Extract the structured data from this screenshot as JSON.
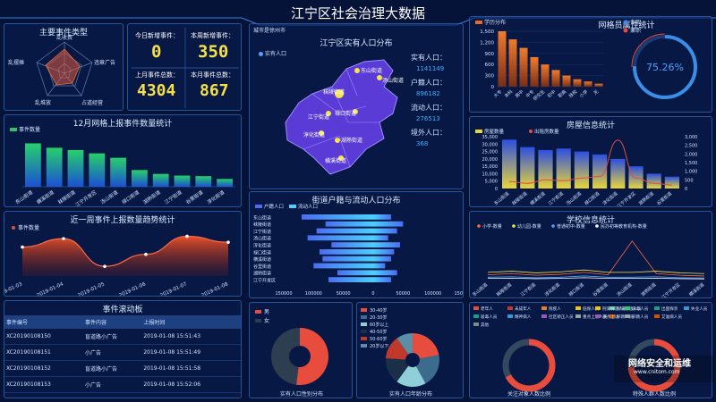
{
  "header": {
    "title": "江宁区社会治理大数据"
  },
  "radar": {
    "title": "主要事件类型",
    "labels": [
      "乱收费",
      "违章广告",
      "占道经营",
      "乱堆放",
      "乱摆摊"
    ]
  },
  "stats": {
    "today_label": "今日新增事件：",
    "today_value": "0",
    "week_label": "本周新增事件：",
    "week_value": "350",
    "lastmonth_label": "上月事件总数：",
    "lastmonth_value": "4304",
    "thismonth_label": "本月事件总数：",
    "thismonth_value": "867"
  },
  "map": {
    "title": "江宁区实有人口分布",
    "subtitle": "城市是徐州市",
    "legend": "实有人口",
    "places": [
      "秣陵街道",
      "东山街道",
      "江宁街道",
      "禄口街道",
      "淳化街道",
      "汤山街道",
      "横溪街道",
      "湖熟街道"
    ],
    "info": [
      {
        "label": "实有人口：",
        "value": "1141149"
      },
      {
        "label": "户籍人口：",
        "value": "896182"
      },
      {
        "label": "流动人口：",
        "value": "276513"
      },
      {
        "label": "境外人口：",
        "value": "368"
      }
    ]
  },
  "chart_data": [
    {
      "type": "bar",
      "title": "12月网格上报事件数量统计",
      "legend": "事件数量",
      "categories": [
        "东山街道",
        "横溪街道",
        "秣陵街道",
        "江宁开发区",
        "汤山街道",
        "禄口街道",
        "湖熟街道",
        "江宁街道",
        "谷里街道",
        "淳化街道"
      ],
      "values": [
        780,
        700,
        660,
        600,
        520,
        300,
        230,
        200,
        190,
        140
      ],
      "ylim": [
        0,
        900
      ]
    },
    {
      "type": "area",
      "title": "近一周事件上报数量趋势统计",
      "legend": "事件数量",
      "categories": [
        "2019-01-03",
        "2019-01-04",
        "2019-01-05",
        "2019-01-06",
        "2019-01-07",
        "2019-01-08"
      ],
      "values": [
        120,
        155,
        40,
        90,
        165,
        140
      ],
      "ylim": [
        0,
        200
      ]
    },
    {
      "type": "bar",
      "title": "网格员属性统计",
      "legend": "学历分布",
      "categories": [
        "大专",
        "本科",
        "高中",
        "中专",
        "研究生",
        "初中",
        "职高",
        "技校",
        "小学",
        "无"
      ],
      "values": [
        1500,
        1280,
        1050,
        800,
        600,
        450,
        300,
        200,
        140,
        80
      ],
      "ylim": [
        0,
        1500
      ],
      "yticks": [
        "0",
        "300",
        "600",
        "900",
        "1,200",
        "1,500"
      ]
    },
    {
      "type": "pie",
      "title": "网格员属性统计",
      "labels": [
        "专职",
        "兼职"
      ],
      "values": [
        75.26,
        24.74
      ],
      "center_label": "75.26%"
    },
    {
      "type": "bar",
      "title": "房屋信息统计",
      "series": [
        {
          "name": "房屋数量",
          "values": [
            33000,
            28000,
            26000,
            27000,
            25000,
            23000,
            20000,
            15000,
            10000,
            8000
          ]
        },
        {
          "name": "出租房数量",
          "values": [
            400,
            300,
            500,
            450,
            600,
            700,
            2800,
            600,
            300,
            200
          ]
        }
      ],
      "categories": [
        "东山街道",
        "秣陵街道",
        "横溪街道",
        "江宁街道",
        "汤山街道",
        "禄口街道",
        "淳化街道",
        "江宁开发区",
        "湖熟街道",
        "谷里街道"
      ],
      "ylim": [
        0,
        35000
      ],
      "y2lim": [
        0,
        3000
      ],
      "yticks": [
        "0",
        "5,000",
        "10,000",
        "15,000",
        "20,000",
        "25,000",
        "30,000",
        "35,000"
      ],
      "y2ticks": [
        "0",
        "500",
        "1,000",
        "1,500",
        "2,000",
        "2,500",
        "3,000"
      ]
    },
    {
      "type": "line",
      "title": "学校信息统计",
      "series": [
        {
          "name": "小学-数量",
          "values": [
            20,
            25,
            18,
            22,
            30,
            20,
            160,
            25,
            18,
            15
          ]
        },
        {
          "name": "幼儿园-数量",
          "values": [
            30,
            35,
            28,
            32,
            40,
            30,
            30,
            35,
            28,
            25
          ]
        },
        {
          "name": "普通初中-数量",
          "values": [
            10,
            12,
            8,
            10,
            15,
            10,
            10,
            12,
            8,
            7
          ]
        },
        {
          "name": "民办初等教育机构-数量",
          "values": [
            5,
            6,
            4,
            5,
            8,
            5,
            5,
            6,
            4,
            3
          ]
        }
      ],
      "categories": [
        "东山街道",
        "秣陵街道",
        "江宁街道",
        "淳化街道",
        "禄口街道",
        "谷里街道",
        "汤山街道",
        "湖熟街道",
        "江宁开发区",
        "横溪街道"
      ],
      "ylim": [
        0,
        200
      ]
    },
    {
      "type": "bar",
      "title": "街道户籍与流动人口分布",
      "series": [
        {
          "name": "户籍人口",
          "values": [
            120000,
            80000,
            95000,
            110000,
            70000,
            90000,
            85000,
            100000,
            60000,
            75000
          ]
        },
        {
          "name": "流动人口",
          "values": [
            30000,
            50000,
            40000,
            25000,
            45000,
            35000,
            30000,
            20000,
            40000,
            30000
          ]
        }
      ],
      "categories": [
        "东山街道",
        "秣陵街道",
        "江宁街道",
        "汤山街道",
        "淳化街道",
        "禄口街道",
        "横溪街道",
        "谷里街道",
        "湖熟街道",
        "江宁开发区"
      ],
      "xticks": [
        "150000",
        "100000",
        "50000",
        "0",
        "50000",
        "100000",
        "150000"
      ]
    },
    {
      "type": "pie",
      "title": "实有人口性别分布",
      "labels": [
        "男",
        "女"
      ],
      "values": [
        52,
        48
      ]
    },
    {
      "type": "pie",
      "title": "实有人口年龄分布",
      "labels": [
        "30-40岁",
        "20-30岁",
        "60岁以上",
        "40-50岁",
        "50-60岁",
        "20岁以下"
      ],
      "values": [
        22,
        20,
        18,
        16,
        14,
        10
      ]
    },
    {
      "type": "pie",
      "title": "关注对象人数比例",
      "labels": [
        "老年人",
        "未成年人",
        "残疾人",
        "低保人员",
        "刑满释放人员",
        "吸毒人员",
        "精神病人",
        "社区矫正人员",
        "重点上访人员",
        "邪教人员",
        "其他"
      ]
    },
    {
      "type": "pie",
      "title": "特殊人群人数比例",
      "labels": [
        "刑满释放人员",
        "吸毒人员",
        "出国探亲",
        "失业人员",
        "重点上访",
        "邪教人员",
        "艾滋病人员"
      ]
    }
  ],
  "events": {
    "title": "事件滚动板",
    "columns": [
      "事件编号",
      "事件内容",
      "上报时间"
    ],
    "rows": [
      [
        "XC20190108150",
        "盲道路小广告",
        "2019-01-08 15:51:43"
      ],
      [
        "XC20190108151",
        "小广告",
        "2019-01-08 15:51:49"
      ],
      [
        "XC20190108152",
        "盲道路小广告",
        "2019-01-08 15:51:58"
      ],
      [
        "XC20190108153",
        "小广告",
        "2019-01-08 15:52:06"
      ]
    ]
  },
  "watermark": {
    "title": "网络安全和运维",
    "url": "www.cnitom.com"
  },
  "colors": {
    "accent": "#f6e04a",
    "bar_green": "#2fc46b",
    "bar_orange": "#e8672a",
    "line_red": "#e74c3c",
    "ring_blue": "#3a8ee6"
  }
}
